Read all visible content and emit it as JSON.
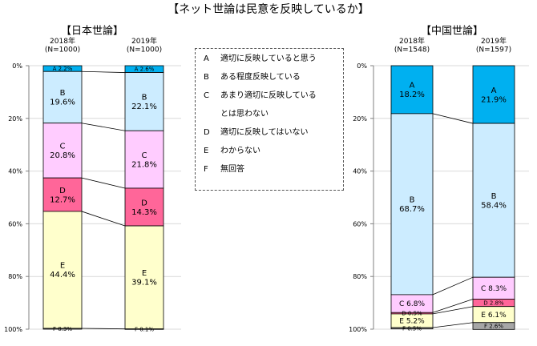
{
  "title": "【ネット世論は民意を反映しているか】",
  "legend": [
    {
      "code": "A",
      "text": "適切に反映していると思う"
    },
    {
      "code": "B",
      "text": "ある程度反映している"
    },
    {
      "code": "C",
      "text": "あまり適切に反映している"
    },
    {
      "code": "",
      "text": "とは思わない"
    },
    {
      "code": "D",
      "text": "適切に反映してはいない"
    },
    {
      "code": "E",
      "text": "わからない"
    },
    {
      "code": "F",
      "text": "無回答"
    }
  ],
  "colors": {
    "A": "#00b0f0",
    "B": "#ccecff",
    "C": "#ffccff",
    "D": "#ff6699",
    "E": "#ffffcc",
    "F": "#a6a6a6"
  },
  "chart_data": [
    {
      "type": "bar",
      "stacked": true,
      "title": "【日本世論】",
      "categories": [
        "2018年\n(N=1000)",
        "2019年\n(N=1000)"
      ],
      "ylim": [
        0,
        100
      ],
      "yticks": [
        "0%",
        "20%",
        "40%",
        "60%",
        "80%",
        "100%"
      ],
      "series": [
        {
          "name": "A",
          "values": [
            2.2,
            2.6
          ],
          "labels": [
            "A 2.2%",
            "A 2.6%"
          ]
        },
        {
          "name": "B",
          "values": [
            19.6,
            22.1
          ],
          "labels": [
            "B\n19.6%",
            "B\n22.1%"
          ]
        },
        {
          "name": "C",
          "values": [
            20.8,
            21.8
          ],
          "labels": [
            "C\n20.8%",
            "C\n21.8%"
          ]
        },
        {
          "name": "D",
          "values": [
            12.7,
            14.3
          ],
          "labels": [
            "D\n12.7%",
            "D\n14.3%"
          ]
        },
        {
          "name": "E",
          "values": [
            44.4,
            39.1
          ],
          "labels": [
            "E\n44.4%",
            "E\n39.1%"
          ]
        },
        {
          "name": "F",
          "values": [
            0.3,
            0.1
          ],
          "labels": [
            "F 0.3%",
            "F 0.1%"
          ]
        }
      ]
    },
    {
      "type": "bar",
      "stacked": true,
      "title": "【中国世論】",
      "categories": [
        "2018年\n(N=1548)",
        "2019年\n(N=1597)"
      ],
      "ylim": [
        0,
        100
      ],
      "yticks": [
        "0%",
        "20%",
        "40%",
        "60%",
        "80%",
        "100%"
      ],
      "series": [
        {
          "name": "A",
          "values": [
            18.2,
            21.9
          ],
          "labels": [
            "A\n18.2%",
            "A\n21.9%"
          ]
        },
        {
          "name": "B",
          "values": [
            68.7,
            58.4
          ],
          "labels": [
            "B\n68.7%",
            "B\n58.4%"
          ]
        },
        {
          "name": "C",
          "values": [
            6.8,
            8.3
          ],
          "labels": [
            "C 6.8%",
            "C 8.3%"
          ]
        },
        {
          "name": "D",
          "values": [
            0.5,
            2.8
          ],
          "labels": [
            "D 0.5%",
            "D 2.8%"
          ]
        },
        {
          "name": "E",
          "values": [
            5.2,
            6.1
          ],
          "labels": [
            "E 5.2%",
            "E 6.1%"
          ]
        },
        {
          "name": "F",
          "values": [
            0.5,
            2.6
          ],
          "labels": [
            "F 0.5%",
            "F 2.6%"
          ]
        }
      ]
    }
  ]
}
